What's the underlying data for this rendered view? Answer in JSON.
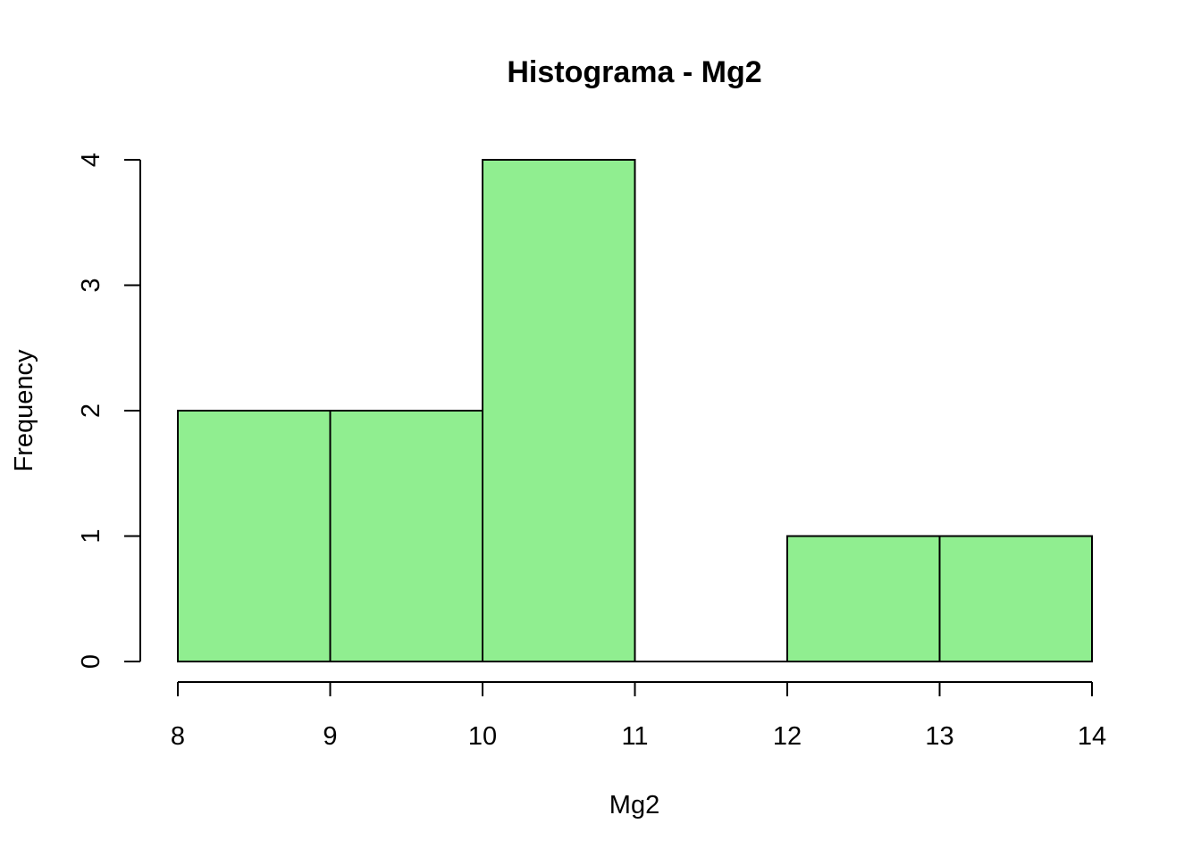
{
  "chart_data": {
    "type": "bar",
    "subtype": "histogram",
    "title": "Histograma - Mg2",
    "xlabel": "Mg2",
    "ylabel": "Frequency",
    "bins": [
      {
        "start": 8,
        "end": 9,
        "count": 2
      },
      {
        "start": 9,
        "end": 10,
        "count": 2
      },
      {
        "start": 10,
        "end": 11,
        "count": 4
      },
      {
        "start": 11,
        "end": 12,
        "count": 0
      },
      {
        "start": 12,
        "end": 13,
        "count": 1
      },
      {
        "start": 13,
        "end": 14,
        "count": 1
      }
    ],
    "xlim": [
      8,
      14
    ],
    "ylim": [
      0,
      4
    ],
    "xticks": [
      8,
      9,
      10,
      11,
      12,
      13,
      14
    ],
    "yticks": [
      0,
      1,
      2,
      3,
      4
    ],
    "bar_color": "#90EE90",
    "edge_color": "#000000",
    "grid": false,
    "legend": "none"
  }
}
